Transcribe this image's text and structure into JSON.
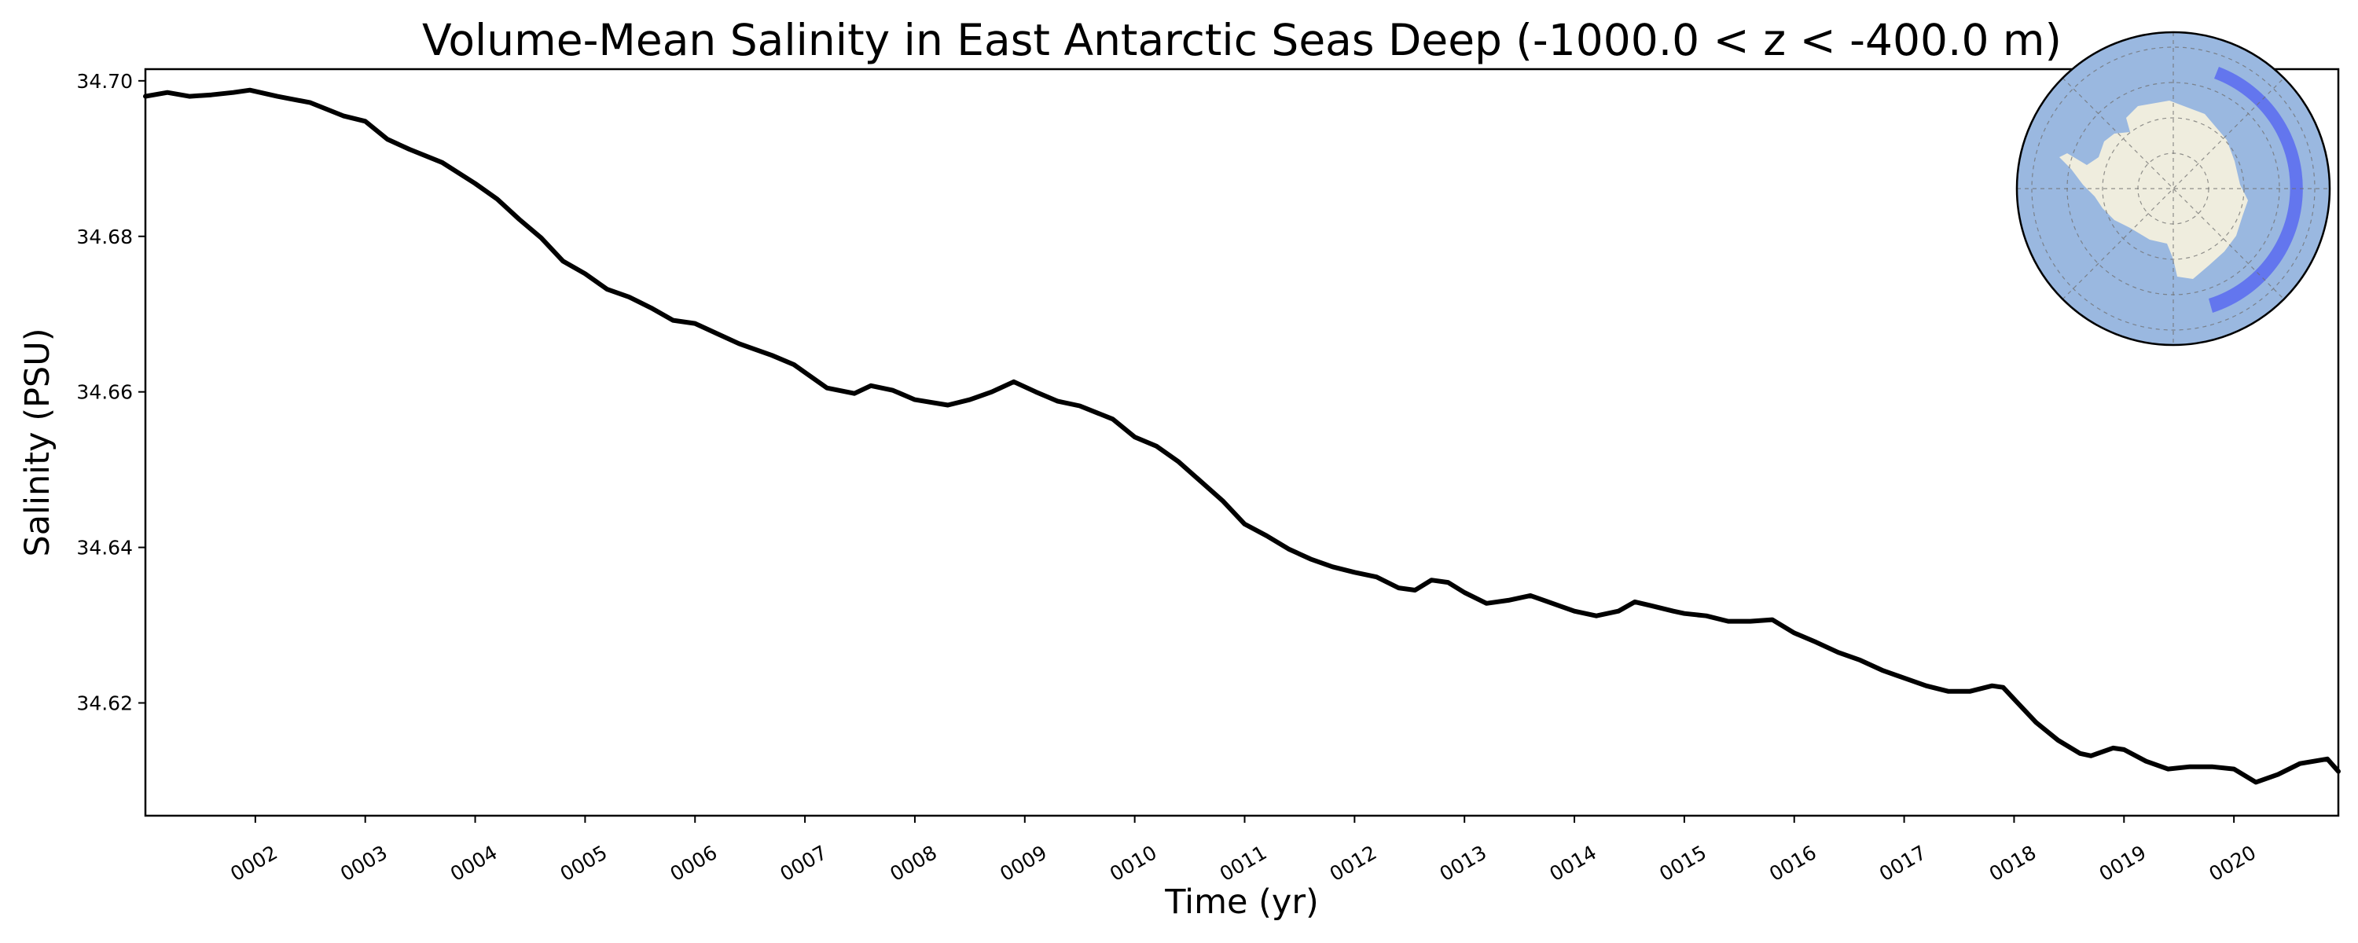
{
  "chart_data": {
    "type": "line",
    "title": "Volume-Mean Salinity in East Antarctic Seas Deep (-1000.0 < z < -400.0 m)",
    "xlabel": "Time (yr)",
    "ylabel": "Salinity (PSU)",
    "xlim": [
      1.0,
      20.95
    ],
    "ylim": [
      34.6055,
      34.7015
    ],
    "xticks": [
      2,
      3,
      4,
      5,
      6,
      7,
      8,
      9,
      10,
      11,
      12,
      13,
      14,
      15,
      16,
      17,
      18,
      19,
      20
    ],
    "xtick_labels": [
      "0002",
      "0003",
      "0004",
      "0005",
      "0006",
      "0007",
      "0008",
      "0009",
      "0010",
      "0011",
      "0012",
      "0013",
      "0014",
      "0015",
      "0016",
      "0017",
      "0018",
      "0019",
      "0020"
    ],
    "yticks": [
      34.62,
      34.64,
      34.66,
      34.68,
      34.7
    ],
    "ytick_labels": [
      "34.62",
      "34.64",
      "34.66",
      "34.68",
      "34.70"
    ],
    "grid": false,
    "legend": "none",
    "series": [
      {
        "color": "#000000",
        "x": [
          1.0,
          1.2,
          1.4,
          1.6,
          1.8,
          1.95,
          2.2,
          2.5,
          2.8,
          3.0,
          3.2,
          3.4,
          3.7,
          4.0,
          4.2,
          4.4,
          4.6,
          4.8,
          5.0,
          5.2,
          5.4,
          5.6,
          5.8,
          6.0,
          6.2,
          6.4,
          6.5,
          6.7,
          6.9,
          7.0,
          7.2,
          7.45,
          7.6,
          7.8,
          8.0,
          8.3,
          8.5,
          8.7,
          8.9,
          9.1,
          9.3,
          9.5,
          9.8,
          10.0,
          10.2,
          10.4,
          10.6,
          10.8,
          11.0,
          11.2,
          11.4,
          11.6,
          11.8,
          12.0,
          12.2,
          12.4,
          12.55,
          12.7,
          12.85,
          13.0,
          13.2,
          13.4,
          13.6,
          13.8,
          14.0,
          14.2,
          14.4,
          14.55,
          14.7,
          14.9,
          15.0,
          15.2,
          15.4,
          15.6,
          15.8,
          16.0,
          16.2,
          16.4,
          16.6,
          16.8,
          17.0,
          17.2,
          17.4,
          17.6,
          17.8,
          17.9,
          18.0,
          18.2,
          18.4,
          18.6,
          18.7,
          18.9,
          19.0,
          19.2,
          19.4,
          19.6,
          19.8,
          20.0,
          20.2,
          20.4,
          20.6,
          20.85,
          20.95
        ],
        "y": [
          34.698,
          34.6985,
          34.698,
          34.6982,
          34.6985,
          34.6988,
          34.698,
          34.6972,
          34.6955,
          34.6948,
          34.6925,
          34.6912,
          34.6895,
          34.6868,
          34.6848,
          34.6822,
          34.6798,
          34.6768,
          34.6752,
          34.6732,
          34.6722,
          34.6708,
          34.6692,
          34.6688,
          34.6675,
          34.6662,
          34.6657,
          34.6647,
          34.6635,
          34.6625,
          34.6605,
          34.6598,
          34.6608,
          34.6602,
          34.659,
          34.6583,
          34.659,
          34.66,
          34.6613,
          34.66,
          34.6588,
          34.6582,
          34.6565,
          34.6542,
          34.653,
          34.651,
          34.6485,
          34.646,
          34.643,
          34.6415,
          34.6398,
          34.6385,
          34.6375,
          34.6368,
          34.6362,
          34.6348,
          34.6345,
          34.6358,
          34.6355,
          34.6342,
          34.6328,
          34.6332,
          34.6338,
          34.6328,
          34.6318,
          34.6312,
          34.6318,
          34.633,
          34.6325,
          34.6318,
          34.6315,
          34.6312,
          34.6305,
          34.6305,
          34.6307,
          34.629,
          34.6278,
          34.6265,
          34.6255,
          34.6242,
          34.6232,
          34.6222,
          34.6215,
          34.6215,
          34.6222,
          34.622,
          34.6205,
          34.6175,
          34.6152,
          34.6135,
          34.6132,
          34.6142,
          34.614,
          34.6125,
          34.6115,
          34.6118,
          34.6118,
          34.6115,
          34.6098,
          34.6108,
          34.6122,
          34.6128,
          34.6112
        ]
      }
    ]
  },
  "inset_map": {
    "ocean_color": "#9ab8e0",
    "land_color": "#efedde",
    "region_color": "#5d6ff0",
    "edge_color": "#000000"
  }
}
